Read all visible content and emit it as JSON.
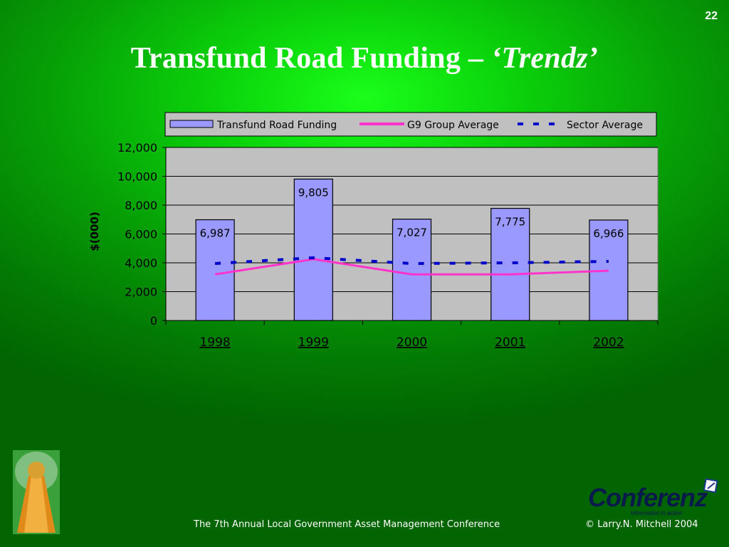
{
  "slide_number": "22",
  "title": {
    "main": "Transfund Road Funding – ",
    "italic": "‘Trendz’"
  },
  "footer": {
    "conference": "The 7th Annual Local Government Asset Management Conference",
    "copyright": "© Larry.N. Mitchell 2004"
  },
  "logo": {
    "name": "Conferenz",
    "tagline": "Information in action"
  },
  "colors": {
    "bar_fill": "#9999ff",
    "g9_line": "#ff33cc",
    "sector_line": "#0000cc",
    "plot_bg": "#c0c0c0"
  },
  "chart_data": {
    "type": "bar",
    "categories": [
      "1998",
      "1999",
      "2000",
      "2001",
      "2002"
    ],
    "ylabel": "$(000)",
    "ylim": [
      0,
      12000
    ],
    "yticks": [
      "0",
      "2,000",
      "4,000",
      "6,000",
      "8,000",
      "10,000",
      "12,000"
    ],
    "ytick_values": [
      0,
      2000,
      4000,
      6000,
      8000,
      10000,
      12000
    ],
    "grid": true,
    "legend_position": "top",
    "series": [
      {
        "name": "Transfund Road Funding",
        "kind": "bar",
        "values": [
          6987,
          9805,
          7027,
          7775,
          6966
        ],
        "labels": [
          "6,987",
          "9,805",
          "7,027",
          "7,775",
          "6,966"
        ]
      },
      {
        "name": "G9 Group Average",
        "kind": "line",
        "values": [
          3200,
          4250,
          3200,
          3200,
          3450
        ]
      },
      {
        "name": "Sector Average",
        "kind": "dashed-line",
        "values": [
          3950,
          4350,
          3950,
          4000,
          4100
        ]
      }
    ]
  }
}
